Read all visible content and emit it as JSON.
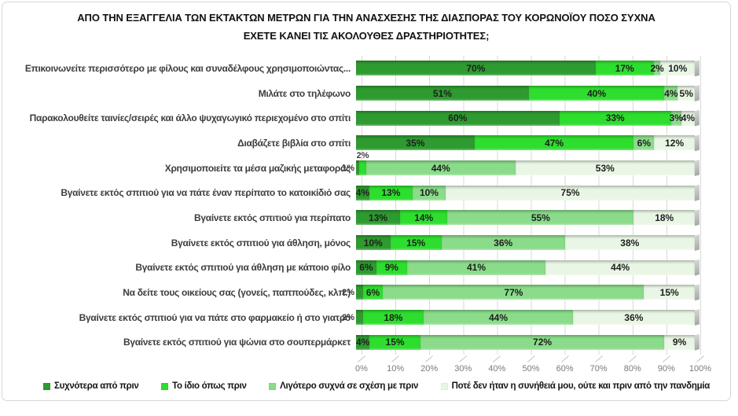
{
  "title": "ΑΠΟ ΤΗΝ ΕΞΑΓΓΕΛΙΑ ΤΩΝ ΕΚΤΑΚΤΩΝ ΜΕΤΡΩΝ ΓΙΑ ΤΗΝ ΑΝΑΣΧΕΣΗΣ ΤΗΣ ΔΙΑΣΠΟΡΑΣ ΤΟΥ ΚΟΡΩΝΟΪΟΥ ΠΟΣΟ ΣΥΧΝΑ ΕΧΕΤΕ ΚΑΝΕΙ ΤΙΣ ΑΚΟΛΟΥΘΕΣ ΔΡΑΣΤΗΡΙΟΤΗΤΕΣ;",
  "chart_data": {
    "type": "bar",
    "orientation": "horizontal",
    "stacked": true,
    "unit": "%",
    "xlim": [
      0,
      100
    ],
    "grid": true,
    "legend_position": "bottom",
    "axis_ticks": [
      "0%",
      "10%",
      "20%",
      "30%",
      "40%",
      "50%",
      "60%",
      "70%",
      "80%",
      "90%",
      "100%"
    ],
    "series": [
      {
        "name": "Συχνότερα από πριν",
        "color": "#2E9B30"
      },
      {
        "name": "Το ίδιο όπως πριν",
        "color": "#2EDE2E"
      },
      {
        "name": "Λιγότερο συχνά σε σχέση με πριν",
        "color": "#8ADC8A"
      },
      {
        "name": "Ποτέ δεν ήταν η συνήθειά μου, ούτε και πριν από την πανδημία",
        "color": "#E9F6E5"
      }
    ],
    "rows": [
      {
        "category": "Επικοινωνείτε περισσότερο με φίλους και συναδέλφους χρησιμοποιώντας...",
        "values": [
          70,
          17,
          2,
          10
        ],
        "labels": [
          "70%",
          "17%",
          "2%",
          "10%"
        ],
        "label_pos": [
          "in",
          "in",
          "in",
          "in"
        ]
      },
      {
        "category": "Μιλάτε στο τηλέφωνο",
        "values": [
          51,
          40,
          4,
          5
        ],
        "labels": [
          "51%",
          "40%",
          "4%",
          "5%"
        ],
        "label_pos": [
          "in",
          "in",
          "in",
          "in"
        ]
      },
      {
        "category": "Παρακολουθείτε ταινίες/σειρές και άλλο ψυχαγωγικό περιεχομένο στο σπίτι",
        "values": [
          60,
          33,
          3,
          4
        ],
        "labels": [
          "60%",
          "33%",
          "3%",
          "4%"
        ],
        "label_pos": [
          "in",
          "in",
          "in",
          "in"
        ]
      },
      {
        "category": "Διαβάζετε βιβλία στο σπίτι",
        "values": [
          35,
          47,
          6,
          12
        ],
        "labels": [
          "35%",
          "47%",
          "6%",
          "12%"
        ],
        "label_pos": [
          "in",
          "in",
          "in",
          "in"
        ]
      },
      {
        "category": "Χρησιμοποιείτε τα μέσα μαζικής μεταφοράς",
        "values": [
          1,
          2,
          44,
          53
        ],
        "labels": [
          "1%",
          "2%",
          "44%",
          "53%"
        ],
        "label_pos": [
          "left",
          "above",
          "in",
          "in"
        ]
      },
      {
        "category": "Βγαίνετε εκτός σπιτιού για να πάτε έναν περίπατο το κατοικίδιό σας",
        "values": [
          4,
          13,
          10,
          75
        ],
        "labels": [
          "4%",
          "13%",
          "10%",
          "75%"
        ],
        "label_pos": [
          "in",
          "in",
          "in",
          "in"
        ]
      },
      {
        "category": "Βγαίνετε εκτός σπιτιού για περίπατο",
        "values": [
          13,
          14,
          55,
          18
        ],
        "labels": [
          "13%",
          "14%",
          "55%",
          "18%"
        ],
        "label_pos": [
          "in",
          "in",
          "in",
          "in"
        ]
      },
      {
        "category": "Βγαίνετε εκτός σπιτιού για άθληση, μόνος",
        "values": [
          10,
          15,
          36,
          38
        ],
        "labels": [
          "10%",
          "15%",
          "36%",
          "38%"
        ],
        "label_pos": [
          "in",
          "in",
          "in",
          "in"
        ]
      },
      {
        "category": "Βγαίνετε εκτός σπιτιού για άθληση με κάποιο φίλο",
        "values": [
          6,
          9,
          41,
          44
        ],
        "labels": [
          "6%",
          "9%",
          "41%",
          "44%"
        ],
        "label_pos": [
          "in",
          "in",
          "in",
          "in"
        ]
      },
      {
        "category": "Να δείτε τους οικείους σας (γονείς, παππούδες, κλπ.)",
        "values": [
          2,
          6,
          77,
          15
        ],
        "labels": [
          "2%",
          "6%",
          "77%",
          "15%"
        ],
        "label_pos": [
          "left",
          "in",
          "in",
          "in"
        ]
      },
      {
        "category": "Βγαίνετε εκτός σπιτιού για να πάτε στο φαρμακείο ή στο γιατρό",
        "values": [
          2,
          18,
          44,
          36
        ],
        "labels": [
          "2%",
          "18%",
          "44%",
          "36%"
        ],
        "label_pos": [
          "left",
          "in",
          "in",
          "in"
        ]
      },
      {
        "category": "Βγαίνετε εκτός σπιτιού για ψώνια στο σουπερμάρκετ",
        "values": [
          4,
          15,
          72,
          9
        ],
        "labels": [
          "4%",
          "15%",
          "72%",
          "9%"
        ],
        "label_pos": [
          "in",
          "in",
          "in",
          "in"
        ]
      }
    ],
    "colors": {
      "gridline": "#d9d9d9",
      "axis_text": "#7a7a7a",
      "bar_end_cap": "#a6a6a6"
    }
  }
}
